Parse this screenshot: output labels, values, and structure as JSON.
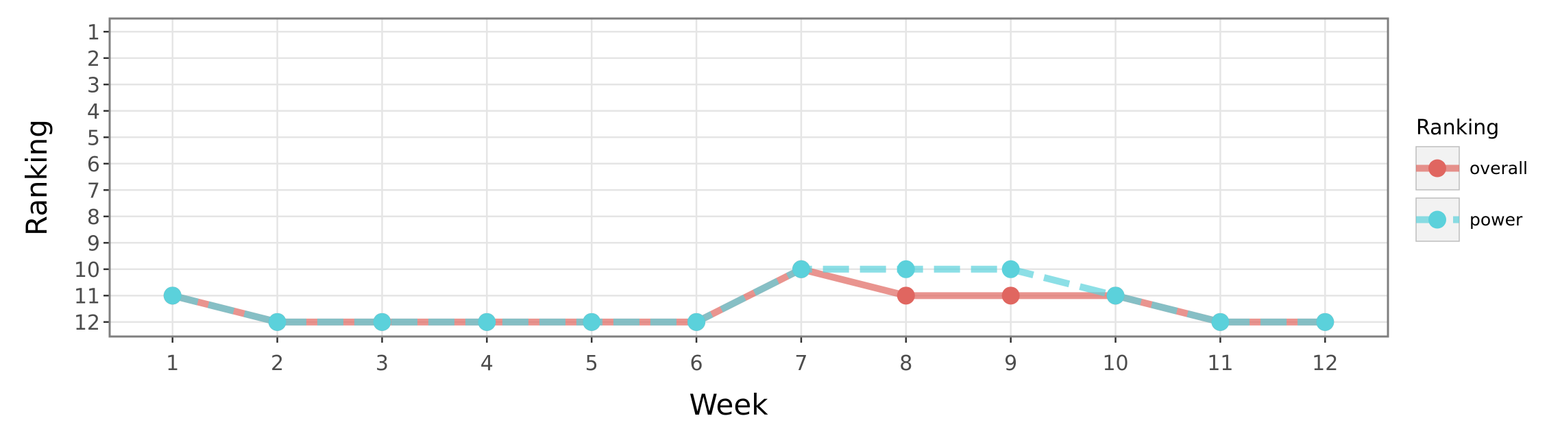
{
  "chart_data": {
    "type": "line",
    "title": "",
    "xlabel": "Week",
    "ylabel": "Ranking",
    "x": [
      1,
      2,
      3,
      4,
      5,
      6,
      7,
      8,
      9,
      10,
      11,
      12
    ],
    "x_ticks": [
      "1",
      "2",
      "3",
      "4",
      "5",
      "6",
      "7",
      "8",
      "9",
      "10",
      "11",
      "12"
    ],
    "y_ticks": [
      "1",
      "2",
      "3",
      "4",
      "5",
      "6",
      "7",
      "8",
      "9",
      "10",
      "11",
      "12"
    ],
    "xlim": [
      0.4,
      12.6
    ],
    "ylim": [
      0.5,
      12.55
    ],
    "y_reversed": true,
    "grid": true,
    "legend": {
      "title": "Ranking",
      "placement": "right"
    },
    "series": [
      {
        "name": "overall",
        "color": "#E06660",
        "line_style": "solid",
        "values": [
          11,
          12,
          12,
          12,
          12,
          12,
          10,
          11,
          11,
          11,
          12,
          12
        ]
      },
      {
        "name": "power",
        "color": "#5BD1DB",
        "line_style": "dashed",
        "values": [
          11,
          12,
          12,
          12,
          12,
          12,
          10,
          10,
          10,
          11,
          12,
          12
        ]
      }
    ]
  }
}
